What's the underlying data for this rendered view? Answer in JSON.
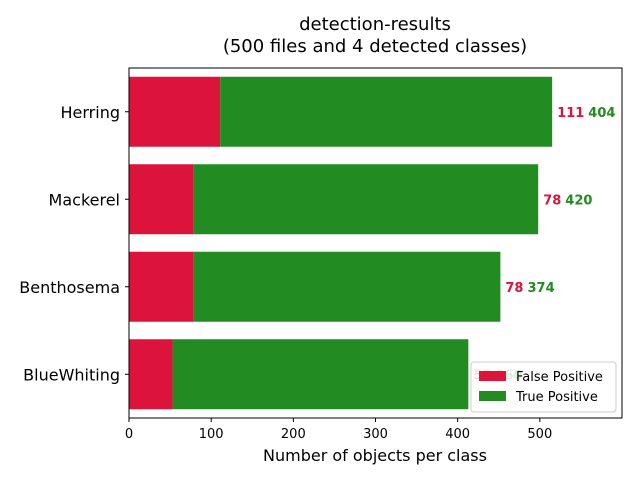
{
  "chart_data": {
    "type": "bar",
    "orientation": "horizontal",
    "stacked": true,
    "title": "detection-results",
    "subtitle": "(500 files and 4 detected classes)",
    "xlabel": "Number of objects per class",
    "ylabel": "",
    "categories": [
      "BlueWhiting",
      "Benthosema",
      "Mackerel",
      "Herring"
    ],
    "series": [
      {
        "name": "False Positive",
        "color": "#dc143c",
        "values": [
          53,
          78,
          78,
          111
        ]
      },
      {
        "name": "True Positive",
        "color": "#228b22",
        "values": [
          360,
          374,
          420,
          404
        ]
      }
    ],
    "xlim": [
      0,
      600
    ],
    "xticks": [
      0,
      100,
      200,
      300,
      400,
      500
    ],
    "grid": false,
    "legend": "lower-right"
  }
}
